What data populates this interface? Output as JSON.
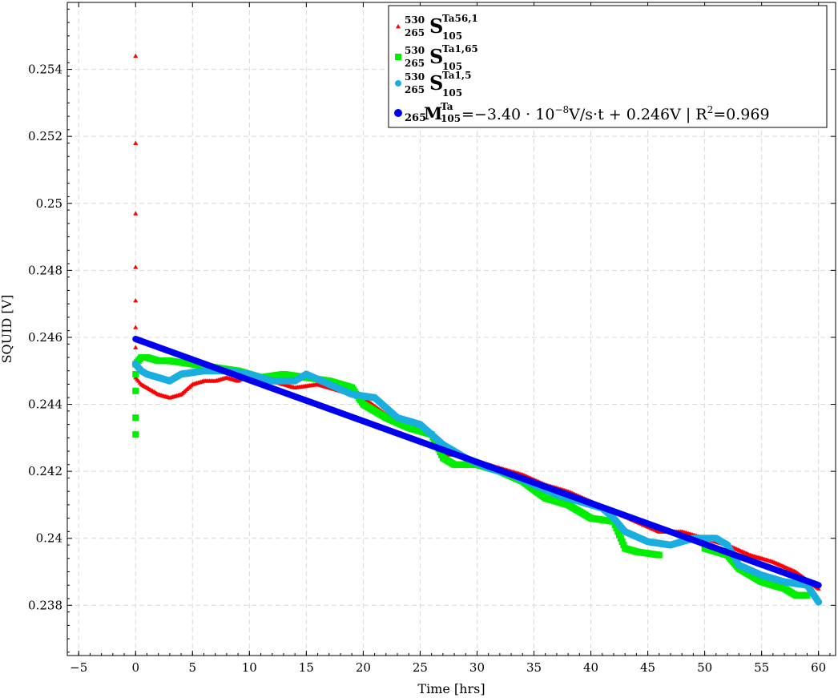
{
  "chart_data": {
    "type": "scatter",
    "xlabel": "Time [hrs]",
    "ylabel": "SQUID [V]",
    "xlim": [
      -6,
      61.5
    ],
    "ylim": [
      0.2365,
      0.256
    ],
    "x_ticks": [
      -5,
      0,
      5,
      10,
      15,
      20,
      25,
      30,
      35,
      40,
      45,
      50,
      55,
      60
    ],
    "x_tick_labels": [
      "−5",
      "0",
      "5",
      "10",
      "15",
      "20",
      "25",
      "30",
      "35",
      "40",
      "45",
      "50",
      "55",
      "60"
    ],
    "y_ticks": [
      0.238,
      0.24,
      0.242,
      0.244,
      0.246,
      0.248,
      0.25,
      0.252,
      0.254
    ],
    "y_tick_labels": [
      "0.238",
      "0.24",
      "0.242",
      "0.244",
      "0.246",
      "0.248",
      "0.25",
      "0.252",
      "0.254"
    ],
    "grid": true,
    "legend_position": "top-right",
    "series": [
      {
        "legend": {
          "pre_sup": "530",
          "pre_sub": "265",
          "base": "S",
          "sup": "Ta56,1",
          "sub": "105"
        },
        "color": "#ff0000",
        "marker": "triangle",
        "initial_spike": [
          [
            0,
            0.2544
          ],
          [
            0,
            0.2518
          ],
          [
            0,
            0.2497
          ],
          [
            0,
            0.2481
          ],
          [
            0,
            0.2471
          ],
          [
            0,
            0.2463
          ],
          [
            0,
            0.2457
          ]
        ],
        "trace": [
          [
            0,
            0.2448
          ],
          [
            0.5,
            0.2446
          ],
          [
            1,
            0.2445
          ],
          [
            2,
            0.2443
          ],
          [
            3,
            0.2442
          ],
          [
            4,
            0.2443
          ],
          [
            5,
            0.2446
          ],
          [
            6,
            0.2447
          ],
          [
            7,
            0.2447
          ],
          [
            8,
            0.2448
          ],
          [
            9,
            0.2447
          ],
          [
            10,
            0.2449
          ],
          [
            12,
            0.2447
          ],
          [
            13,
            0.2446
          ],
          [
            14,
            0.2445
          ],
          [
            16,
            0.2446
          ],
          [
            18,
            0.2444
          ],
          [
            20,
            0.2442
          ],
          [
            22,
            0.2437
          ],
          [
            24,
            0.2435
          ],
          [
            26,
            0.2431
          ],
          [
            27,
            0.2425
          ],
          [
            28,
            0.2425
          ],
          [
            30,
            0.2423
          ],
          [
            32,
            0.2421
          ],
          [
            34,
            0.2419
          ],
          [
            36,
            0.2416
          ],
          [
            38,
            0.2414
          ],
          [
            40,
            0.2411
          ],
          [
            42,
            0.2408
          ],
          [
            44,
            0.2405
          ],
          [
            46,
            0.2402
          ],
          [
            48,
            0.2402
          ],
          [
            50,
            0.24
          ],
          [
            52,
            0.2398
          ],
          [
            54,
            0.2395
          ],
          [
            56,
            0.2393
          ],
          [
            58,
            0.239
          ],
          [
            60,
            0.2385
          ]
        ]
      },
      {
        "legend": {
          "pre_sup": "530",
          "pre_sub": "265",
          "base": "S",
          "sup": "Ta1,65",
          "sub": "105"
        },
        "color": "#00ee00",
        "marker": "square",
        "initial_spike": [
          [
            0,
            0.2431
          ],
          [
            0,
            0.2436
          ],
          [
            0,
            0.2444
          ],
          [
            0,
            0.2449
          ]
        ],
        "trace": [
          [
            0,
            0.2452
          ],
          [
            0.5,
            0.2454
          ],
          [
            1,
            0.2454
          ],
          [
            2,
            0.2453
          ],
          [
            3,
            0.2453
          ],
          [
            5,
            0.2452
          ],
          [
            7,
            0.2451
          ],
          [
            9,
            0.245
          ],
          [
            11,
            0.2448
          ],
          [
            13,
            0.2449
          ],
          [
            15,
            0.2448
          ],
          [
            17,
            0.2447
          ],
          [
            19,
            0.2445
          ],
          [
            20,
            0.244
          ],
          [
            22,
            0.2436
          ],
          [
            24,
            0.2433
          ],
          [
            26,
            0.2431
          ],
          [
            27,
            0.2424
          ],
          [
            28,
            0.2422
          ],
          [
            30,
            0.2422
          ],
          [
            32,
            0.242
          ],
          [
            34,
            0.2417
          ],
          [
            36,
            0.2412
          ],
          [
            38,
            0.241
          ],
          [
            40,
            0.2406
          ],
          [
            42,
            0.2405
          ],
          [
            43,
            0.2397
          ],
          [
            44,
            0.2396
          ],
          [
            46,
            0.2395
          ]
        ],
        "trace2": [
          [
            50,
            0.2397
          ],
          [
            52,
            0.2395
          ],
          [
            53,
            0.2391
          ],
          [
            55,
            0.2387
          ],
          [
            57,
            0.2385
          ],
          [
            58,
            0.2383
          ],
          [
            59,
            0.2383
          ]
        ]
      },
      {
        "legend": {
          "pre_sup": "530",
          "pre_sub": "265",
          "base": "S",
          "sup": "Ta1,5",
          "sub": "105"
        },
        "color": "#1aaedf",
        "marker": "circle",
        "initial_spike": [],
        "trace": [
          [
            0,
            0.2452
          ],
          [
            0.5,
            0.245
          ],
          [
            1,
            0.2449
          ],
          [
            2,
            0.2448
          ],
          [
            3,
            0.2447
          ],
          [
            4,
            0.2449
          ],
          [
            6,
            0.245
          ],
          [
            8,
            0.245
          ],
          [
            10,
            0.2449
          ],
          [
            12,
            0.2447
          ],
          [
            14,
            0.2447
          ],
          [
            15,
            0.2449
          ],
          [
            17,
            0.2446
          ],
          [
            19,
            0.2443
          ],
          [
            21,
            0.2442
          ],
          [
            23,
            0.2436
          ],
          [
            25,
            0.2434
          ],
          [
            27,
            0.2428
          ],
          [
            29,
            0.2424
          ],
          [
            31,
            0.2421
          ],
          [
            33,
            0.2419
          ],
          [
            35,
            0.2416
          ],
          [
            37,
            0.2413
          ],
          [
            39,
            0.2411
          ],
          [
            41,
            0.2409
          ],
          [
            42,
            0.2406
          ],
          [
            43,
            0.2402
          ],
          [
            45,
            0.2399
          ],
          [
            47,
            0.2398
          ],
          [
            49,
            0.24
          ],
          [
            51,
            0.24
          ],
          [
            52,
            0.2398
          ],
          [
            53,
            0.2392
          ],
          [
            55,
            0.2389
          ],
          [
            57,
            0.2387
          ],
          [
            59,
            0.2386
          ],
          [
            60,
            0.2381
          ]
        ]
      },
      {
        "legend": {
          "base": "M",
          "pre_sub": "265",
          "sup": "Ta",
          "sub": "105",
          "equation": "=−3.40 · 10",
          "exp": "−8",
          "equation_rest": "V/s·t + 0.246V | R",
          "r_exp": "2",
          "r_value": "=0.969"
        },
        "color": "#0000ee",
        "marker": "line",
        "fit": [
          [
            0,
            0.24595
          ],
          [
            60,
            0.2386
          ]
        ]
      }
    ]
  }
}
